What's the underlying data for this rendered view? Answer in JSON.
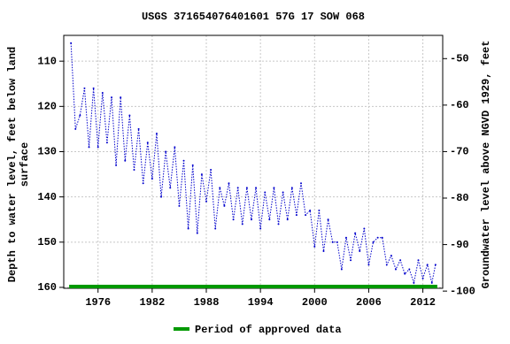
{
  "chart_data": {
    "type": "line",
    "title": "USGS 371654076401601 57G 17 SOW 068",
    "ylabel": [
      "Depth to water level, feet below land",
      "surface"
    ],
    "y2label": "Groundwater level above NGVD 1929, feet",
    "color": "#0000cc",
    "x": [
      1973.0,
      1973.5,
      1974.0,
      1974.5,
      1975.0,
      1975.5,
      1976.0,
      1976.5,
      1977.0,
      1977.5,
      1978.0,
      1978.5,
      1979.0,
      1979.5,
      1980.0,
      1980.5,
      1981.0,
      1981.5,
      1982.0,
      1982.5,
      1983.0,
      1983.5,
      1984.0,
      1984.5,
      1985.0,
      1985.5,
      1986.0,
      1986.5,
      1987.0,
      1987.5,
      1988.0,
      1988.5,
      1989.0,
      1989.5,
      1990.0,
      1990.5,
      1991.0,
      1991.5,
      1992.0,
      1992.5,
      1993.0,
      1993.5,
      1994.0,
      1994.5,
      1995.0,
      1995.5,
      1996.0,
      1996.5,
      1997.0,
      1997.5,
      1998.0,
      1998.5,
      1999.0,
      1999.5,
      2000.0,
      2000.5,
      2001.0,
      2001.5,
      2002.0,
      2002.5,
      2003.0,
      2003.5,
      2004.0,
      2004.5,
      2005.0,
      2005.5,
      2006.0,
      2006.5,
      2007.0,
      2007.5,
      2008.0,
      2008.5,
      2009.0,
      2009.5,
      2010.0,
      2010.5,
      2011.0,
      2011.5,
      2012.0,
      2012.5,
      2013.0,
      2013.4
    ],
    "values": [
      106,
      125,
      122,
      116,
      129,
      116,
      129,
      117,
      128,
      118,
      133,
      118,
      132,
      122,
      134,
      125,
      137,
      128,
      136,
      126,
      140,
      130,
      138,
      129,
      142,
      132,
      147,
      133,
      148,
      135,
      141,
      134,
      147,
      138,
      142,
      137,
      145,
      138,
      146,
      138,
      145,
      138,
      147,
      139,
      145,
      138,
      146,
      139,
      145,
      138,
      144,
      137,
      144,
      143,
      151,
      143,
      152,
      145,
      150,
      150,
      156,
      149,
      154,
      148,
      152,
      147,
      155,
      150,
      149,
      149,
      155,
      153,
      156,
      154,
      157,
      156,
      159,
      154,
      158,
      155,
      159,
      155
    ],
    "xlim": [
      1972.2,
      2014.2
    ],
    "xticks": [
      1976,
      1982,
      1988,
      1994,
      2000,
      2006,
      2012
    ],
    "ylim": [
      160.2,
      104.3
    ],
    "yticks": [
      110,
      120,
      130,
      140,
      150,
      160
    ],
    "y2lim": [
      -99.4,
      -45.0
    ],
    "y2ticks": [
      -50,
      -60,
      -70,
      -80,
      -90,
      -100
    ],
    "grid": true,
    "approved": {
      "name": "Period of approved data",
      "color": "#009900",
      "start": 1972.8,
      "end": 2013.6
    }
  }
}
